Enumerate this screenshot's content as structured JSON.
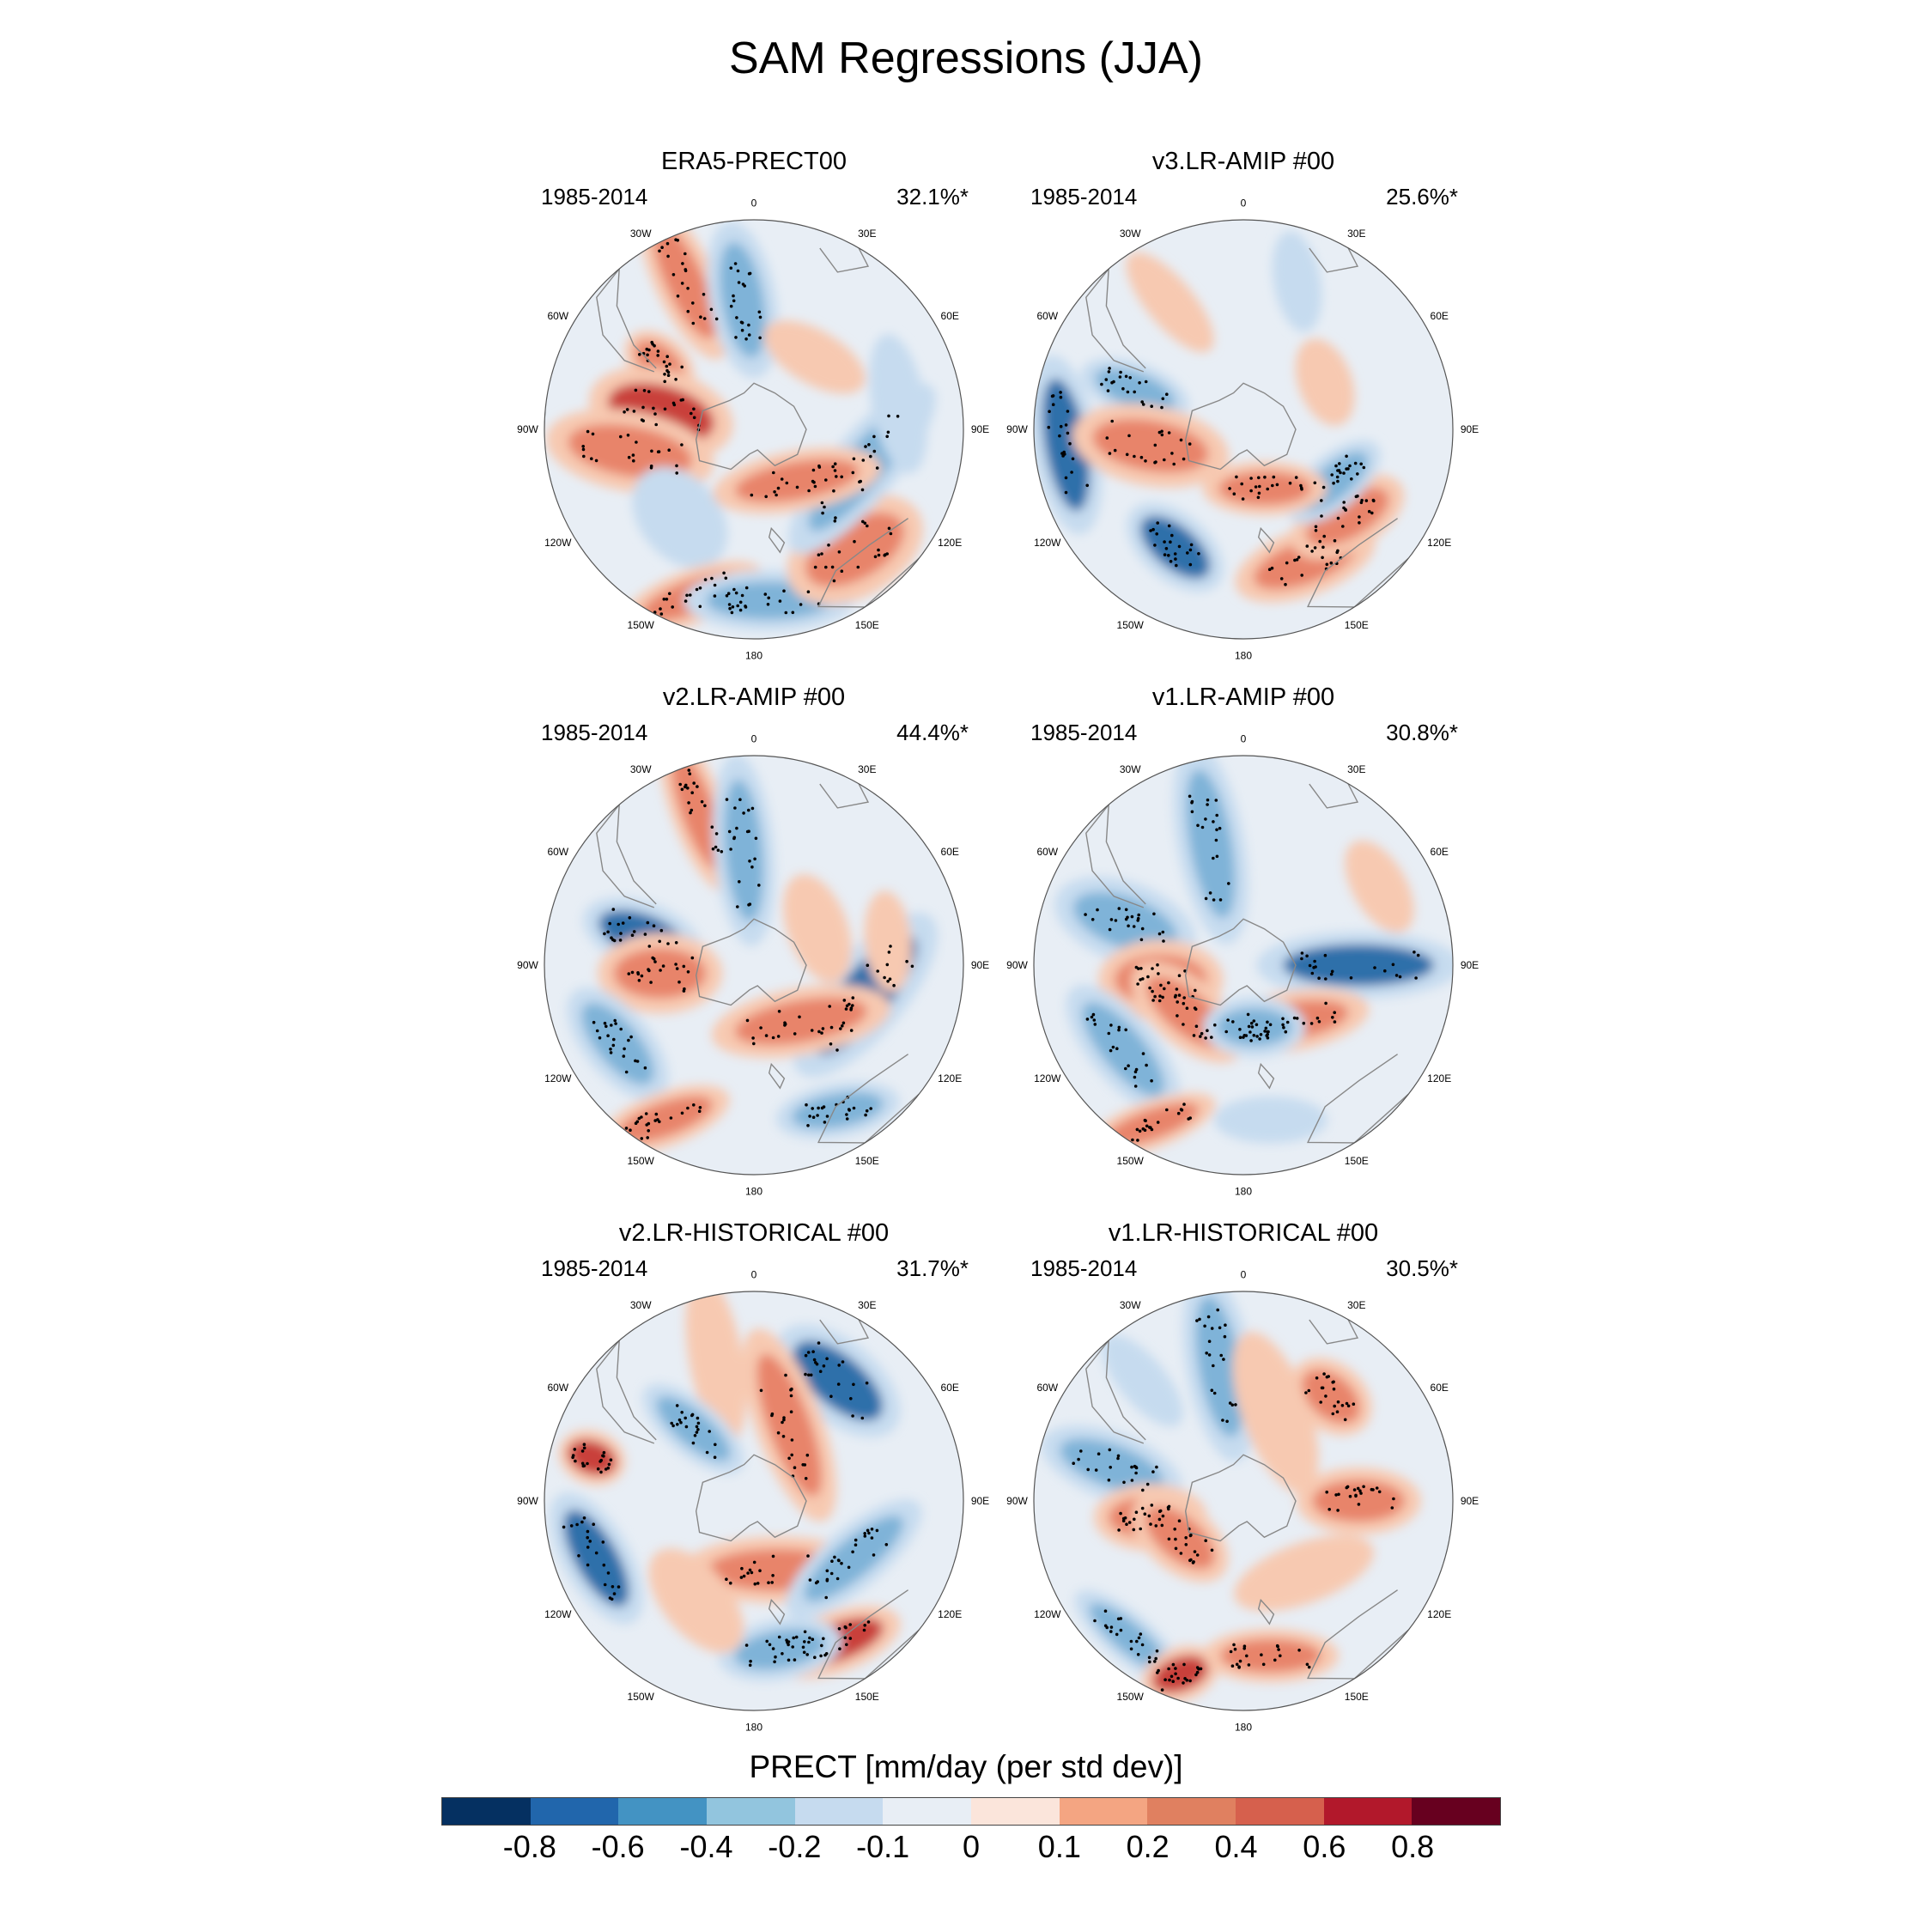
{
  "title": "SAM Regressions (JJA)",
  "panels": [
    {
      "id": "p1",
      "name": "ERA5-PRECT00",
      "years": "1985-2014",
      "percent": "32.1%*"
    },
    {
      "id": "p2",
      "name": "v3.LR-AMIP  #00",
      "years": "1985-2014",
      "percent": "25.6%*"
    },
    {
      "id": "p3",
      "name": "v2.LR-AMIP  #00",
      "years": "1985-2014",
      "percent": "44.4%*"
    },
    {
      "id": "p4",
      "name": "v1.LR-AMIP  #00",
      "years": "1985-2014",
      "percent": "30.8%*"
    },
    {
      "id": "p5",
      "name": "v2.LR-HISTORICAL  #00",
      "years": "1985-2014",
      "percent": "31.7%*"
    },
    {
      "id": "p6",
      "name": "v1.LR-HISTORICAL  #00",
      "years": "1985-2014",
      "percent": "30.5%*"
    }
  ],
  "lon_labels": [
    "0",
    "30E",
    "60E",
    "90E",
    "120E",
    "150E",
    "180",
    "150W",
    "120W",
    "90W",
    "60W",
    "30W"
  ],
  "colorbar": {
    "title": "PRECT [mm/day (per std dev)]",
    "ticks": [
      "-0.8",
      "-0.6",
      "-0.4",
      "-0.2",
      "-0.1",
      "0",
      "0.1",
      "0.2",
      "0.4",
      "0.6",
      "0.8"
    ],
    "colors": [
      "#053061",
      "#2166ac",
      "#4393c3",
      "#92c5de",
      "#c6dbef",
      "#e8eef5",
      "#fbe5db",
      "#f4a582",
      "#e08060",
      "#d6604d",
      "#b2182b",
      "#67001f"
    ]
  },
  "palette": {
    "background": "#e8eef5",
    "pos_weak": "#f7c9b1",
    "pos_mid": "#e8846a",
    "pos_strong": "#c9403a",
    "neg_weak": "#c6dbef",
    "neg_mid": "#7fb3d8",
    "neg_strong": "#2f6faa",
    "coast": "#888888"
  }
}
